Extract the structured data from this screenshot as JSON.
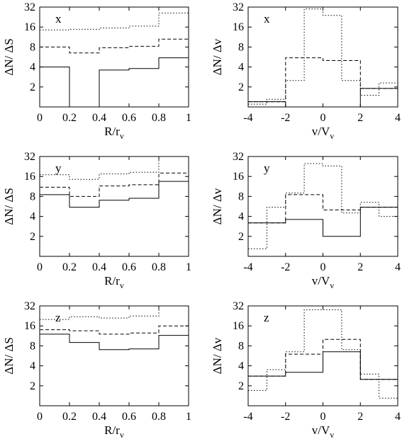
{
  "chart_data": [
    {
      "type": "step",
      "panel_label": "x",
      "xlabel": "R/r_v",
      "xlabel_main": "R/r",
      "xlabel_sub": "v",
      "ylabel": "ΔN/ ΔS",
      "xlim": [
        0,
        1
      ],
      "ylim": [
        1,
        32
      ],
      "yscale": "log2",
      "xticks": [
        "0",
        "0.2",
        "0.4",
        "0.6",
        "0.8",
        "1"
      ],
      "xtick_values": [
        0,
        0.2,
        0.4,
        0.6,
        0.8,
        1
      ],
      "yticks": [
        "2",
        "4",
        "8",
        "16",
        "32"
      ],
      "ytick_values": [
        2,
        4,
        8,
        16,
        32
      ],
      "bin_edges": [
        0,
        0.2,
        0.4,
        0.6,
        0.8,
        1
      ],
      "series": [
        {
          "style": "solid",
          "values": [
            4.0,
            0.75,
            3.6,
            3.8,
            5.5
          ]
        },
        {
          "style": "dashed",
          "values": [
            8.0,
            6.5,
            7.8,
            8.2,
            10.5
          ]
        },
        {
          "style": "dotted",
          "values": [
            14.5,
            14.8,
            15.5,
            16.5,
            26.0
          ]
        }
      ]
    },
    {
      "type": "step",
      "panel_label": "x",
      "xlabel": "v/V_v",
      "xlabel_main": "v/V",
      "xlabel_sub": "v",
      "ylabel": "ΔN/ Δv",
      "xlim": [
        -4,
        4
      ],
      "ylim": [
        1,
        32
      ],
      "yscale": "log2",
      "xticks": [
        "-4",
        "-2",
        "0",
        "2",
        "4"
      ],
      "xtick_values": [
        -4,
        -2,
        0,
        2,
        4
      ],
      "yticks": [
        "2",
        "4",
        "8",
        "16",
        "32"
      ],
      "ytick_values": [
        2,
        4,
        8,
        16,
        32
      ],
      "bin_edges": [
        -4,
        -3,
        -2,
        -1,
        0,
        1,
        2,
        3,
        4
      ],
      "series": [
        {
          "style": "solid",
          "values": [
            1.2,
            1.2,
            1.0,
            1.0,
            0.9,
            0.9,
            1.9,
            1.9
          ]
        },
        {
          "style": "dashed",
          "values": [
            1.2,
            1.2,
            5.5,
            5.5,
            5.0,
            5.0,
            1.9,
            1.9
          ]
        },
        {
          "style": "dotted",
          "values": [
            1.1,
            1.3,
            2.5,
            30.0,
            24.0,
            2.5,
            1.5,
            2.3
          ]
        }
      ]
    },
    {
      "type": "step",
      "panel_label": "y",
      "xlabel": "R/r_v",
      "xlabel_main": "R/r",
      "xlabel_sub": "v",
      "ylabel": "ΔN/ ΔS",
      "xlim": [
        0,
        1
      ],
      "ylim": [
        1,
        32
      ],
      "yscale": "log2",
      "xticks": [
        "0",
        "0.2",
        "0.4",
        "0.6",
        "0.8",
        "1"
      ],
      "xtick_values": [
        0,
        0.2,
        0.4,
        0.6,
        0.8,
        1
      ],
      "yticks": [
        "2",
        "4",
        "8",
        "16",
        "32"
      ],
      "ytick_values": [
        2,
        4,
        8,
        16,
        32
      ],
      "bin_edges": [
        0,
        0.2,
        0.4,
        0.6,
        0.8,
        1
      ],
      "series": [
        {
          "style": "solid",
          "values": [
            8.5,
            5.5,
            7.0,
            7.5,
            13.5
          ]
        },
        {
          "style": "dashed",
          "values": [
            11.0,
            8.0,
            11.5,
            12.0,
            18.0
          ]
        },
        {
          "style": "dotted",
          "values": [
            17.0,
            14.5,
            17.5,
            18.5,
            33.0
          ]
        }
      ]
    },
    {
      "type": "step",
      "panel_label": "y",
      "xlabel": "v/V_v",
      "xlabel_main": "v/V",
      "xlabel_sub": "v",
      "ylabel": "ΔN/ Δv",
      "xlim": [
        -4,
        4
      ],
      "ylim": [
        1,
        32
      ],
      "yscale": "log2",
      "xticks": [
        "-4",
        "-2",
        "0",
        "2",
        "4"
      ],
      "xtick_values": [
        -4,
        -2,
        0,
        2,
        4
      ],
      "yticks": [
        "2",
        "4",
        "8",
        "16",
        "32"
      ],
      "ytick_values": [
        2,
        4,
        8,
        16,
        32
      ],
      "bin_edges": [
        -4,
        -3,
        -2,
        -1,
        0,
        1,
        2,
        3,
        4
      ],
      "series": [
        {
          "style": "solid",
          "values": [
            3.2,
            3.2,
            3.6,
            3.6,
            2.0,
            2.0,
            5.5,
            5.5
          ]
        },
        {
          "style": "dashed",
          "values": [
            3.2,
            3.2,
            8.5,
            8.5,
            5.0,
            5.0,
            5.5,
            5.5
          ]
        },
        {
          "style": "dotted",
          "values": [
            1.3,
            5.5,
            9.0,
            25.0,
            23.0,
            4.5,
            6.5,
            4.0
          ]
        }
      ]
    },
    {
      "type": "step",
      "panel_label": "z",
      "xlabel": "R/r_v",
      "xlabel_main": "R/r",
      "xlabel_sub": "v",
      "ylabel": "ΔN/ ΔS",
      "xlim": [
        0,
        1
      ],
      "ylim": [
        1,
        32
      ],
      "yscale": "log2",
      "xticks": [
        "0",
        "0.2",
        "0.4",
        "0.6",
        "0.8",
        "1"
      ],
      "xtick_values": [
        0,
        0.2,
        0.4,
        0.6,
        0.8,
        1
      ],
      "yticks": [
        "2",
        "4",
        "8",
        "16",
        "32"
      ],
      "ytick_values": [
        2,
        4,
        8,
        16,
        32
      ],
      "bin_edges": [
        0,
        0.2,
        0.4,
        0.6,
        0.8,
        1
      ],
      "series": [
        {
          "style": "solid",
          "values": [
            12.0,
            9.0,
            7.0,
            7.2,
            11.5
          ]
        },
        {
          "style": "dashed",
          "values": [
            14.0,
            13.5,
            12.0,
            12.5,
            16.0
          ]
        },
        {
          "style": "dotted",
          "values": [
            20.0,
            22.0,
            21.0,
            22.5,
            32.0
          ]
        }
      ]
    },
    {
      "type": "step",
      "panel_label": "z",
      "xlabel": "v/V_v",
      "xlabel_main": "v/V",
      "xlabel_sub": "v",
      "ylabel": "ΔN/ Δv",
      "xlim": [
        -4,
        4
      ],
      "ylim": [
        1,
        32
      ],
      "yscale": "log2",
      "xticks": [
        "-4",
        "-2",
        "0",
        "2",
        "4"
      ],
      "xtick_values": [
        -4,
        -2,
        0,
        2,
        4
      ],
      "yticks": [
        "2",
        "4",
        "8",
        "16",
        "32"
      ],
      "ytick_values": [
        2,
        4,
        8,
        16,
        32
      ],
      "bin_edges": [
        -4,
        -3,
        -2,
        -1,
        0,
        1,
        2,
        3,
        4
      ],
      "series": [
        {
          "style": "solid",
          "values": [
            2.8,
            2.8,
            3.2,
            3.2,
            6.5,
            6.5,
            2.5,
            2.5
          ]
        },
        {
          "style": "dashed",
          "values": [
            2.8,
            2.8,
            6.0,
            6.0,
            10.0,
            10.0,
            2.5,
            2.5
          ]
        },
        {
          "style": "dotted",
          "values": [
            1.7,
            3.5,
            6.5,
            28.0,
            28.0,
            7.0,
            3.0,
            1.3
          ]
        }
      ]
    }
  ]
}
